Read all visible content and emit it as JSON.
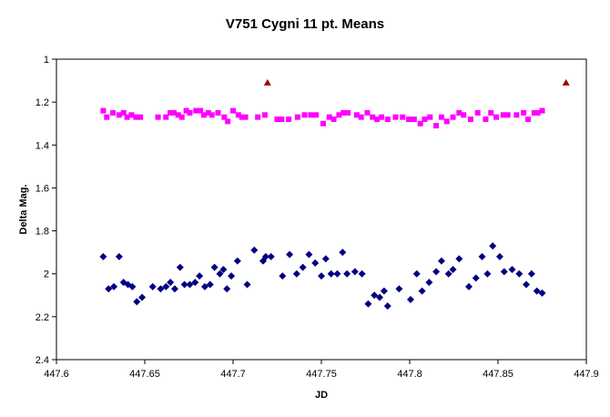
{
  "chart_data": {
    "type": "scatter",
    "title": "V751 Cygni 11 pt. Means",
    "xlabel": "JD",
    "ylabel": "Delta Mag.",
    "xlim": [
      447.6,
      447.9
    ],
    "ylim": [
      2.4,
      1.0
    ],
    "y_reversed": true,
    "x_ticks": [
      "447.6",
      "447.65",
      "447.7",
      "447.75",
      "447.8",
      "447.85",
      "447.9"
    ],
    "y_ticks": [
      "1",
      "1.2",
      "1.4",
      "1.6",
      "1.8",
      "2",
      "2.2",
      "2.4"
    ],
    "grid": false,
    "legend": "none",
    "series": [
      {
        "marker": "square",
        "color": "#ff00ff",
        "x": [
          447.6265,
          447.6285,
          447.632,
          447.6355,
          447.638,
          447.64,
          447.6425,
          447.645,
          447.6475,
          447.6575,
          447.662,
          447.6645,
          447.6665,
          447.669,
          447.671,
          447.6735,
          447.6755,
          447.679,
          447.6815,
          447.6835,
          447.686,
          447.688,
          447.6915,
          447.695,
          447.697,
          447.7,
          447.703,
          447.705,
          447.707,
          447.714,
          447.718,
          447.725,
          447.7275,
          447.7315,
          447.7365,
          447.7405,
          447.744,
          447.747,
          447.751,
          447.7545,
          447.757,
          447.76,
          447.7625,
          447.765,
          447.77,
          447.7725,
          447.776,
          447.779,
          447.7815,
          447.784,
          447.7875,
          447.792,
          447.796,
          447.7995,
          447.8025,
          447.806,
          447.8085,
          447.8115,
          447.815,
          447.818,
          447.821,
          447.8245,
          447.828,
          447.8305,
          447.8345,
          447.8385,
          447.843,
          447.846,
          447.849,
          447.853,
          447.8555,
          447.8605,
          447.8645,
          447.867,
          447.8705,
          447.8725,
          447.875
        ],
        "y": [
          1.24,
          1.27,
          1.25,
          1.26,
          1.25,
          1.27,
          1.26,
          1.27,
          1.27,
          1.27,
          1.27,
          1.25,
          1.25,
          1.26,
          1.27,
          1.24,
          1.25,
          1.24,
          1.24,
          1.26,
          1.25,
          1.26,
          1.25,
          1.27,
          1.29,
          1.24,
          1.26,
          1.27,
          1.27,
          1.27,
          1.26,
          1.28,
          1.28,
          1.28,
          1.27,
          1.26,
          1.26,
          1.26,
          1.3,
          1.27,
          1.28,
          1.26,
          1.25,
          1.25,
          1.26,
          1.27,
          1.25,
          1.27,
          1.28,
          1.27,
          1.28,
          1.27,
          1.27,
          1.28,
          1.28,
          1.3,
          1.28,
          1.27,
          1.31,
          1.27,
          1.29,
          1.27,
          1.25,
          1.26,
          1.28,
          1.25,
          1.28,
          1.25,
          1.27,
          1.26,
          1.26,
          1.26,
          1.25,
          1.28,
          1.25,
          1.25,
          1.24
        ]
      },
      {
        "marker": "triangle",
        "color": "#a00000",
        "x": [
          447.7195,
          447.8885
        ],
        "y": [
          1.11,
          1.11
        ]
      },
      {
        "marker": "diamond",
        "color": "#000080",
        "x": [
          447.6265,
          447.6295,
          447.6325,
          447.6355,
          447.638,
          447.6405,
          447.643,
          447.6455,
          447.6485,
          447.6545,
          447.659,
          447.662,
          447.6645,
          447.667,
          447.67,
          447.6725,
          447.6755,
          447.6785,
          447.681,
          447.684,
          447.687,
          447.6895,
          447.6925,
          447.6945,
          447.6965,
          447.699,
          447.7025,
          447.708,
          447.712,
          447.717,
          447.7185,
          447.7215,
          447.728,
          447.732,
          447.736,
          447.7395,
          447.743,
          447.7465,
          447.75,
          447.7525,
          447.7555,
          447.759,
          447.762,
          447.7645,
          447.769,
          447.773,
          447.7765,
          447.78,
          447.783,
          447.7855,
          447.7875,
          447.794,
          447.8005,
          447.804,
          447.807,
          447.811,
          447.815,
          447.818,
          447.822,
          447.8245,
          447.828,
          447.8335,
          447.8375,
          447.841,
          447.844,
          447.847,
          447.851,
          447.8535,
          447.858,
          447.862,
          447.866,
          447.869,
          447.872,
          447.875
        ],
        "y": [
          1.92,
          2.07,
          2.06,
          1.92,
          2.04,
          2.05,
          2.06,
          2.13,
          2.11,
          2.06,
          2.07,
          2.06,
          2.04,
          2.07,
          1.97,
          2.05,
          2.05,
          2.04,
          2.01,
          2.06,
          2.05,
          1.97,
          2.0,
          1.98,
          2.07,
          2.01,
          1.94,
          2.05,
          1.89,
          1.94,
          1.92,
          1.92,
          2.01,
          1.91,
          2.0,
          1.97,
          1.91,
          1.95,
          2.01,
          1.93,
          2.0,
          2.0,
          1.9,
          2.0,
          1.99,
          2.0,
          2.14,
          2.1,
          2.11,
          2.08,
          2.15,
          2.07,
          2.12,
          2.0,
          2.08,
          2.04,
          1.99,
          1.94,
          2.0,
          1.98,
          1.93,
          2.06,
          2.02,
          1.92,
          2.0,
          1.87,
          1.92,
          1.99,
          1.98,
          2.0,
          2.05,
          2.0,
          2.08,
          2.09
        ]
      }
    ]
  }
}
